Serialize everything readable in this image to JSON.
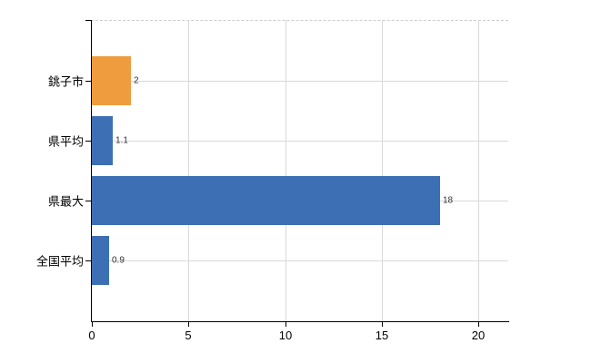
{
  "chart_data": {
    "type": "bar",
    "orientation": "horizontal",
    "title": "",
    "xlabel": "",
    "ylabel": "",
    "categories": [
      "銚子市",
      "県平均",
      "県最大",
      "全国平均"
    ],
    "values": [
      2,
      1.1,
      18,
      0.9
    ],
    "value_labels": [
      "2",
      "1.1",
      "18",
      "0.9"
    ],
    "bar_colors": [
      "#ee9c3d",
      "#3c6fb3",
      "#3c6fb3",
      "#3c6fb3"
    ],
    "x_ticks": [
      0,
      5,
      10,
      15,
      20
    ],
    "x_tick_labels": [
      "0",
      "5",
      "10",
      "15",
      "20"
    ],
    "xlim": [
      0,
      21.6
    ],
    "grid": true,
    "legend": "none"
  },
  "colors": {
    "accent_orange": "#ee9c3d",
    "accent_blue": "#3c6fb3",
    "gridline": "#d9d9d9",
    "top_border": "#cccccc",
    "axis": "#000000",
    "value_text": "#333333",
    "label_text": "#000000",
    "background": "#ffffff"
  }
}
